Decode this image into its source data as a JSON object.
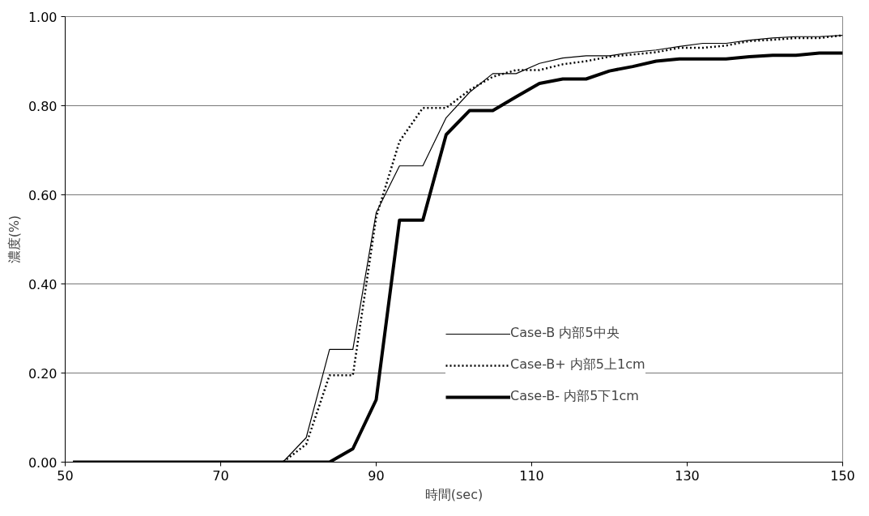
{
  "chart_data": {
    "type": "line",
    "xlabel": "時間(sec)",
    "ylabel": "濃度(%)",
    "x": [
      51,
      78,
      81,
      84,
      87,
      90,
      93,
      96,
      99,
      102,
      105,
      108,
      111,
      114,
      117,
      120,
      123,
      126,
      129,
      132,
      135,
      138,
      141,
      144,
      147,
      150
    ],
    "series": [
      {
        "name": "Case-B 内部5中央",
        "color": "#000000",
        "line_style": "solid",
        "values": [
          0,
          0,
          0.055,
          0.253,
          0.253,
          0.56,
          0.665,
          0.665,
          0.773,
          0.83,
          0.872,
          0.872,
          0.895,
          0.907,
          0.912,
          0.912,
          0.92,
          0.925,
          0.933,
          0.94,
          0.94,
          0.947,
          0.952,
          0.955,
          0.955,
          0.958
        ]
      },
      {
        "name": "Case-B+ 内部5上1cm",
        "color": "#000000",
        "line_style": "dotted",
        "values": [
          0,
          0,
          0.04,
          0.195,
          0.195,
          0.55,
          0.72,
          0.795,
          0.795,
          0.835,
          0.865,
          0.88,
          0.88,
          0.893,
          0.9,
          0.91,
          0.915,
          0.92,
          0.93,
          0.93,
          0.935,
          0.945,
          0.948,
          0.952,
          0.952,
          0.958
        ]
      },
      {
        "name": "Case-B- 内部5下1cm",
        "color": "#000000",
        "line_style": "solid",
        "values": [
          0,
          0,
          0,
          0,
          0.03,
          0.14,
          0.543,
          0.543,
          0.735,
          0.789,
          0.789,
          0.82,
          0.85,
          0.86,
          0.86,
          0.878,
          0.888,
          0.9,
          0.905,
          0.905,
          0.905,
          0.91,
          0.913,
          0.913,
          0.918,
          0.918
        ]
      }
    ],
    "xlim": [
      50,
      150
    ],
    "xticks": [
      50,
      70,
      90,
      110,
      130,
      150
    ],
    "ylim": [
      0,
      1
    ],
    "yticks": [
      {
        "value": 0,
        "label": "0.00"
      },
      {
        "value": 0.2,
        "label": "0.20"
      },
      {
        "value": 0.4,
        "label": "0.40"
      },
      {
        "value": 0.6,
        "label": "0.60"
      },
      {
        "value": 0.8,
        "label": "0.80"
      },
      {
        "value": 1,
        "label": "1.00"
      }
    ],
    "grid": "y",
    "legend": "right",
    "marker": "none"
  }
}
